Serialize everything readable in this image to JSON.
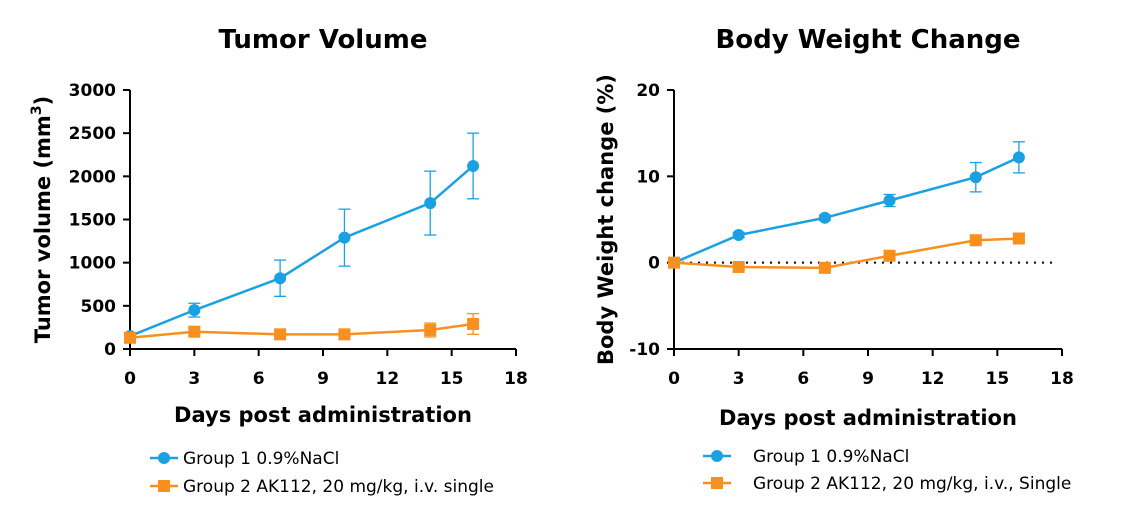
{
  "chart_data": [
    {
      "type": "line",
      "title": "Tumor Volume",
      "xlabel": "Days post administration",
      "ylabel": "Tumor volume (mm",
      "ylabel_sup": "3",
      "ylabel_end": ")",
      "xlim": [
        0,
        18
      ],
      "ylim": [
        0,
        3000
      ],
      "xticks": [
        0,
        3,
        6,
        9,
        12,
        15,
        18
      ],
      "yticks": [
        0,
        500,
        1000,
        1500,
        2000,
        2500,
        3000
      ],
      "series": [
        {
          "name": "Group 1 0.9%NaCl",
          "color": "#1ba1e2",
          "marker": "circle",
          "x": [
            0,
            3,
            7,
            10,
            14,
            16
          ],
          "y": [
            150,
            450,
            820,
            1290,
            1690,
            2120
          ],
          "err": [
            20,
            80,
            210,
            330,
            370,
            380
          ]
        },
        {
          "name": "Group 2 AK112, 20 mg/kg, i.v. single",
          "color": "#f7901e",
          "marker": "square",
          "x": [
            0,
            3,
            7,
            10,
            14,
            16
          ],
          "y": [
            130,
            200,
            170,
            170,
            220,
            290
          ],
          "err": [
            20,
            40,
            30,
            30,
            80,
            120
          ]
        }
      ]
    },
    {
      "type": "line",
      "title": "Body Weight Change",
      "xlabel": "Days post administration",
      "ylabel": "Body Weight change (%)",
      "xlim": [
        0,
        18
      ],
      "ylim": [
        -10,
        20
      ],
      "xticks": [
        0,
        3,
        6,
        9,
        12,
        15,
        18
      ],
      "yticks": [
        -10,
        0,
        10,
        20
      ],
      "reference_line": 0,
      "series": [
        {
          "name": "Group 1 0.9%NaCl",
          "color": "#1ba1e2",
          "marker": "circle",
          "x": [
            0,
            3,
            7,
            10,
            14,
            16
          ],
          "y": [
            0,
            3.2,
            5.2,
            7.2,
            9.9,
            12.2
          ],
          "err": [
            0,
            0.3,
            0.3,
            0.7,
            1.7,
            1.8
          ]
        },
        {
          "name": "Group 2 AK112,  20 mg/kg, i.v., Single",
          "color": "#f7901e",
          "marker": "square",
          "x": [
            0,
            3,
            7,
            10,
            14,
            16
          ],
          "y": [
            0,
            -0.5,
            -0.6,
            0.8,
            2.6,
            2.8
          ],
          "err": [
            0,
            0.3,
            0.3,
            0.3,
            0.3,
            0.3
          ]
        }
      ]
    }
  ]
}
